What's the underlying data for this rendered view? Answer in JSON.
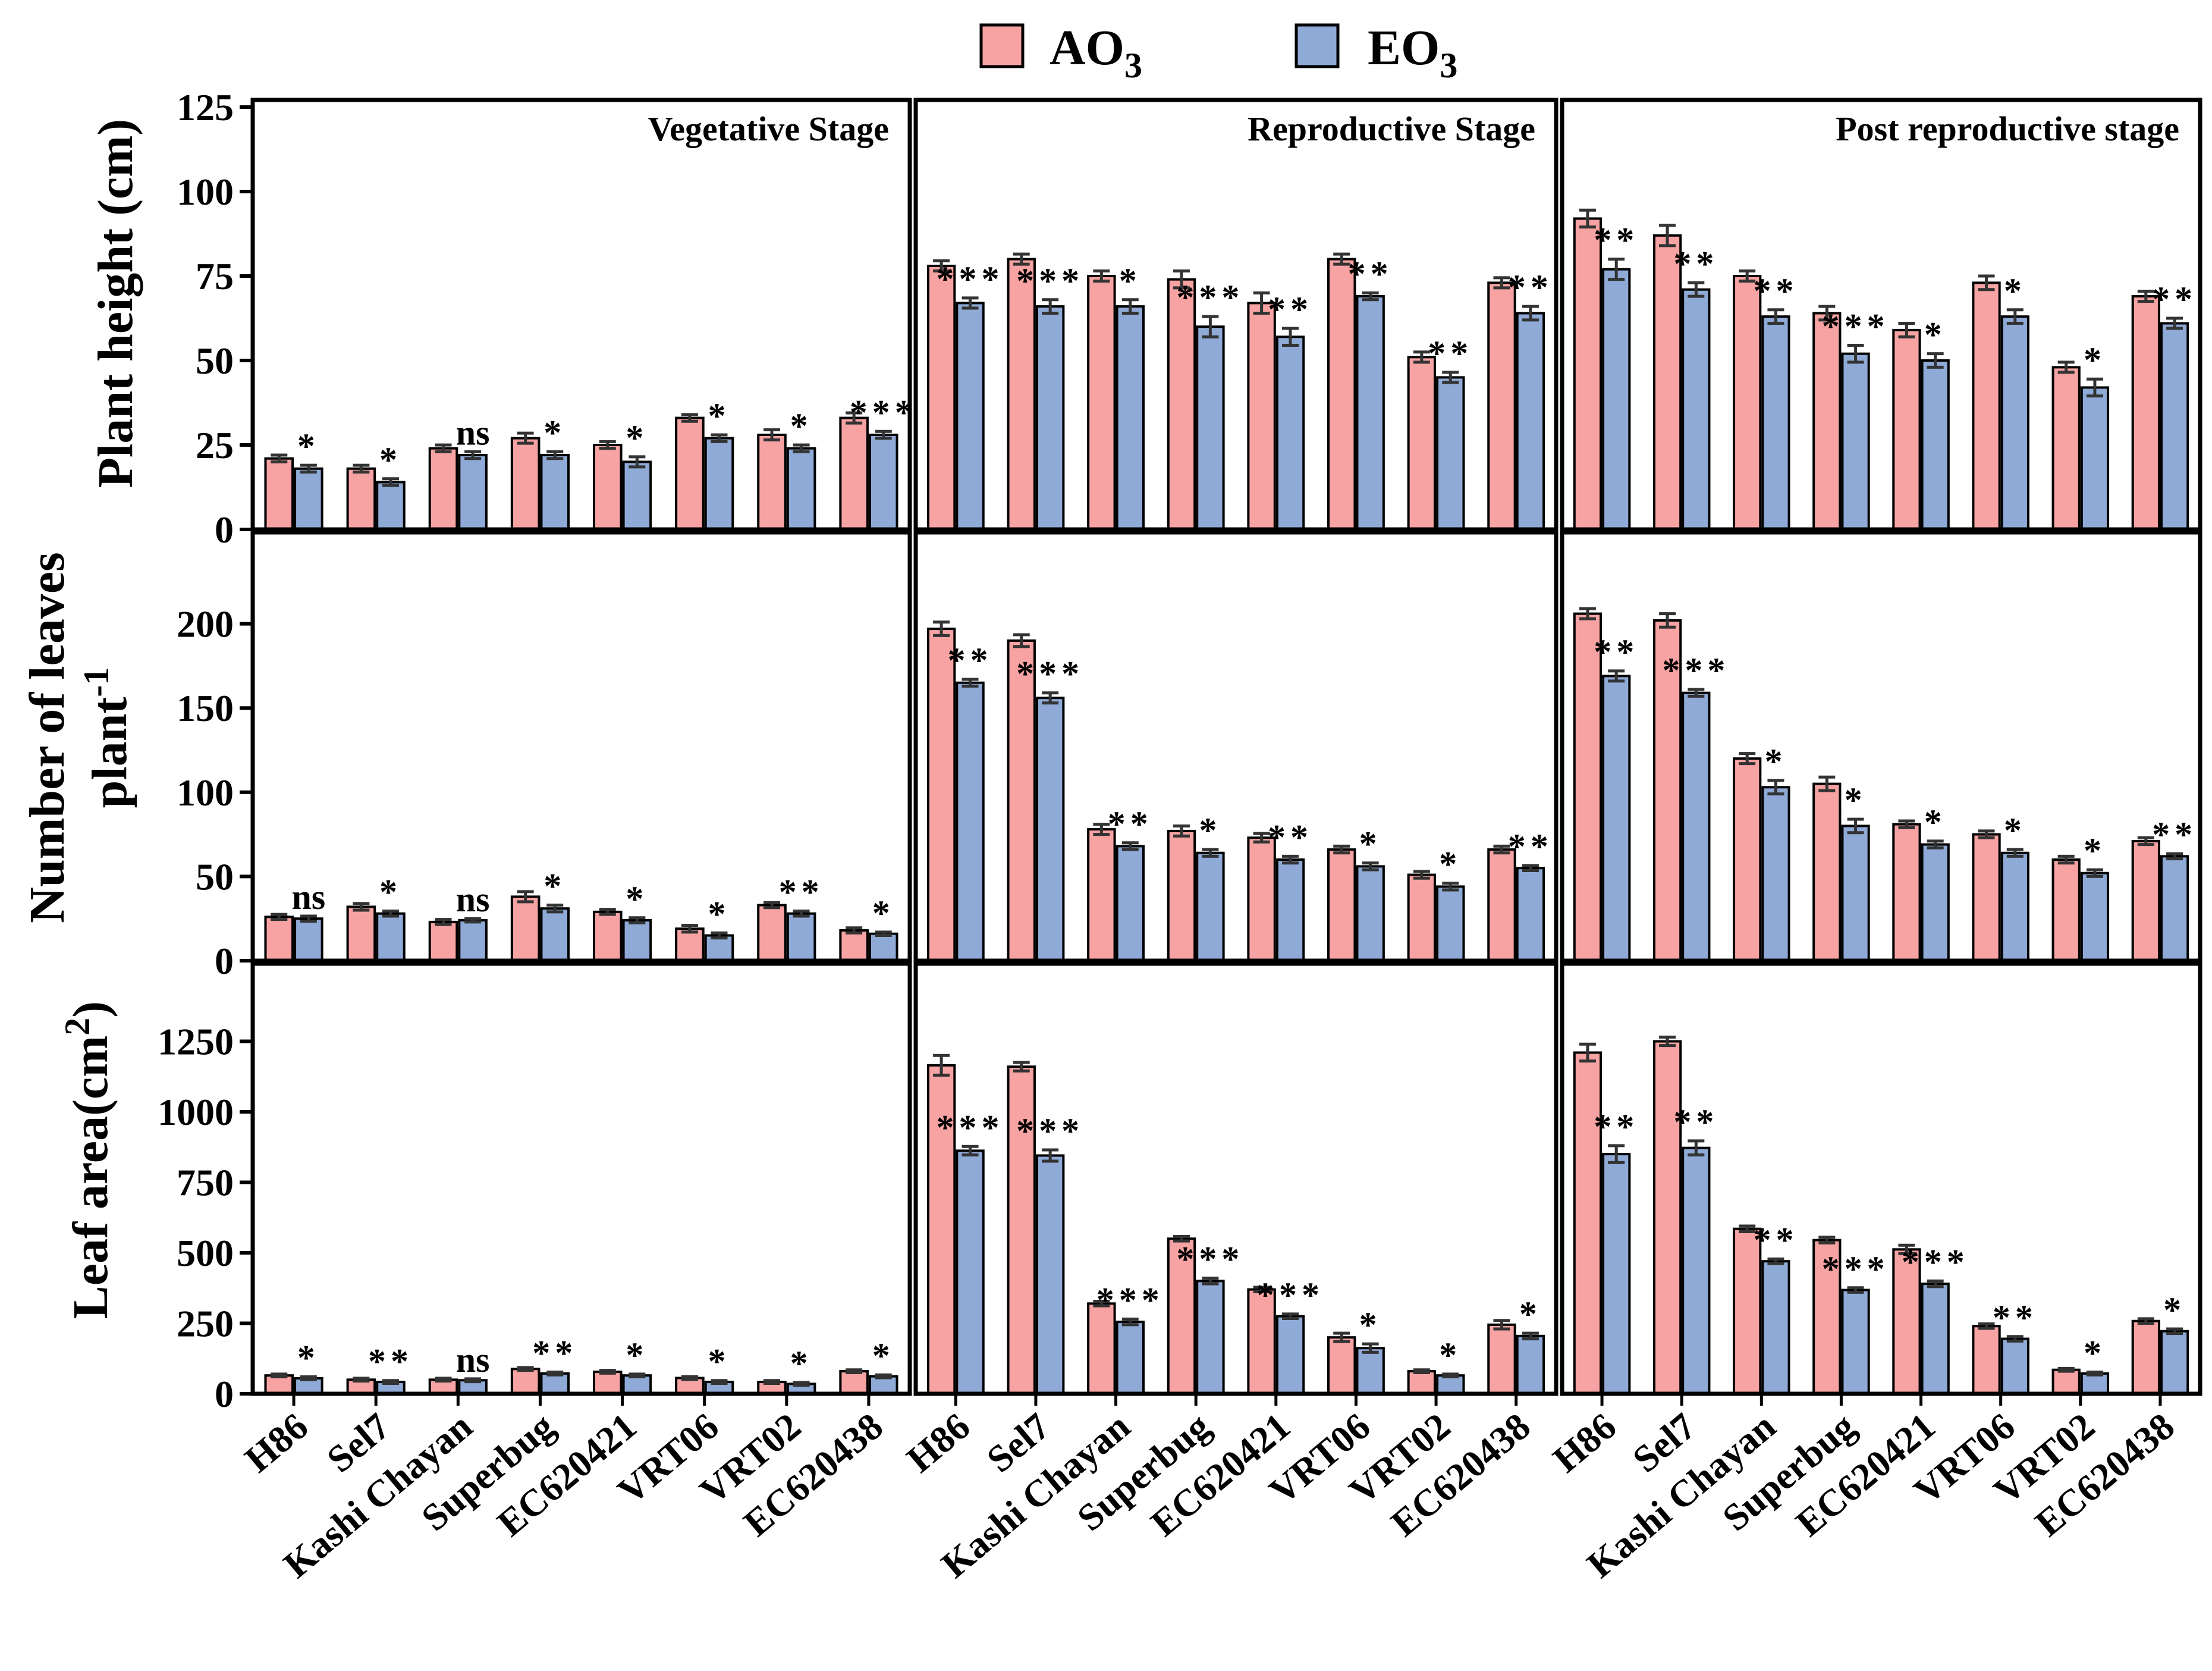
{
  "colors": {
    "ao3": "#F7A3A3",
    "eo3": "#8FAAD6",
    "axis": "#000000"
  },
  "legend": {
    "ao3": {
      "text": "AO",
      "sub": "3"
    },
    "eo3": {
      "text": "EO",
      "sub": "3"
    }
  },
  "categories": [
    "H86",
    "Sel7",
    "Kashi Chayan",
    "Superbug",
    "EC620421",
    "VRT06",
    "VRT02",
    "EC620438"
  ],
  "stages": [
    "Vegetative Stage",
    "Reproductive Stage",
    "Post reproductive stage"
  ],
  "ylabels": {
    "height": "Plant height (cm)",
    "leaves_line1": "Number of leaves",
    "leaves_line2_main": "plant",
    "leaves_line2_sup": "-1",
    "area_main": "Leaf area(cm",
    "area_sup": "2",
    "area_close": ")"
  },
  "chart_data": [
    {
      "type": "bar",
      "metric": "Plant height (cm)",
      "stage": "Vegetative Stage",
      "ylim": [
        0,
        125
      ],
      "yticks": [
        0,
        25,
        50,
        75,
        100,
        125
      ],
      "series": [
        {
          "name": "AO3",
          "values": [
            21,
            18,
            24,
            27,
            25,
            33,
            28,
            33
          ],
          "errors": [
            1,
            1,
            1,
            1.5,
            1,
            1,
            1.5,
            1.5
          ]
        },
        {
          "name": "EO3",
          "values": [
            18,
            14,
            22,
            22,
            20,
            27,
            24,
            28
          ],
          "errors": [
            1,
            1,
            1,
            1,
            1.5,
            1,
            1,
            1
          ]
        }
      ],
      "significance": [
        "*",
        "*",
        "ns",
        "*",
        "*",
        "*",
        "*",
        "***"
      ]
    },
    {
      "type": "bar",
      "metric": "Plant height (cm)",
      "stage": "Reproductive Stage",
      "ylim": [
        0,
        125
      ],
      "yticks": [
        0,
        25,
        50,
        75,
        100,
        125
      ],
      "series": [
        {
          "name": "AO3",
          "values": [
            78,
            80,
            75,
            74,
            67,
            80,
            51,
            73
          ],
          "errors": [
            1.5,
            1.5,
            1.5,
            2.5,
            3,
            1.5,
            1.5,
            1.5
          ]
        },
        {
          "name": "EO3",
          "values": [
            67,
            66,
            66,
            60,
            57,
            69,
            45,
            64
          ],
          "errors": [
            1.5,
            2,
            2,
            3,
            2.5,
            1,
            1.5,
            2
          ]
        }
      ],
      "significance": [
        "***",
        "***",
        "*",
        "***",
        "**",
        "**",
        "**",
        "**"
      ]
    },
    {
      "type": "bar",
      "metric": "Plant height (cm)",
      "stage": "Post reproductive stage",
      "ylim": [
        0,
        125
      ],
      "yticks": [
        0,
        25,
        50,
        75,
        100,
        125
      ],
      "series": [
        {
          "name": "AO3",
          "values": [
            92,
            87,
            75,
            64,
            59,
            73,
            48,
            69
          ],
          "errors": [
            2.5,
            3,
            1.5,
            2,
            2,
            2,
            1.5,
            1.5
          ]
        },
        {
          "name": "EO3",
          "values": [
            77,
            71,
            63,
            52,
            50,
            63,
            42,
            61
          ],
          "errors": [
            3,
            2,
            2,
            2.5,
            2,
            2,
            2.5,
            1.5
          ]
        }
      ],
      "significance": [
        "**",
        "**",
        "**",
        "***",
        "*",
        "*",
        "*",
        "**"
      ]
    },
    {
      "type": "bar",
      "metric": "Number of leaves plant-1",
      "stage": "Vegetative Stage",
      "ylim": [
        0,
        250
      ],
      "yticks": [
        0,
        50,
        100,
        150,
        200
      ],
      "series": [
        {
          "name": "AO3",
          "values": [
            26,
            32,
            23,
            38,
            29,
            19,
            33,
            18
          ],
          "errors": [
            1.5,
            2,
            1.5,
            3,
            1.5,
            2,
            1.5,
            1.5
          ]
        },
        {
          "name": "EO3",
          "values": [
            25,
            28,
            24,
            31,
            24,
            15,
            28,
            16
          ],
          "errors": [
            1.5,
            1.5,
            1,
            2,
            1.5,
            1.5,
            1.5,
            1
          ]
        }
      ],
      "significance": [
        "ns",
        "*",
        "ns",
        "*",
        "*",
        "*",
        "**",
        "*"
      ]
    },
    {
      "type": "bar",
      "metric": "Number of leaves plant-1",
      "stage": "Reproductive Stage",
      "ylim": [
        0,
        250
      ],
      "yticks": [
        0,
        50,
        100,
        150,
        200
      ],
      "series": [
        {
          "name": "AO3",
          "values": [
            197,
            190,
            78,
            77,
            73,
            66,
            51,
            66
          ],
          "errors": [
            4,
            3.5,
            3,
            3,
            2.5,
            2,
            2,
            2
          ]
        },
        {
          "name": "EO3",
          "values": [
            165,
            156,
            68,
            64,
            60,
            56,
            44,
            55
          ],
          "errors": [
            2,
            3,
            2,
            2,
            2,
            2,
            2,
            1.5
          ]
        }
      ],
      "significance": [
        "**",
        "***",
        "**",
        "*",
        "**",
        "*",
        "*",
        "**"
      ]
    },
    {
      "type": "bar",
      "metric": "Number of leaves plant-1",
      "stage": "Post reproductive stage",
      "ylim": [
        0,
        250
      ],
      "yticks": [
        0,
        50,
        100,
        150,
        200
      ],
      "series": [
        {
          "name": "AO3",
          "values": [
            206,
            202,
            120,
            105,
            81,
            75,
            60,
            71
          ],
          "errors": [
            3,
            4,
            3,
            4,
            2,
            2,
            2,
            2
          ]
        },
        {
          "name": "EO3",
          "values": [
            169,
            159,
            103,
            80,
            69,
            64,
            52,
            62
          ],
          "errors": [
            3,
            2,
            4,
            4,
            2,
            2,
            2,
            1.5
          ]
        }
      ],
      "significance": [
        "**",
        "***",
        "*",
        "*",
        "*",
        "*",
        "*",
        "**"
      ]
    },
    {
      "type": "bar",
      "metric": "Leaf area (cm2)",
      "stage": "Vegetative Stage",
      "ylim": [
        0,
        1500
      ],
      "yticks": [
        0,
        250,
        500,
        750,
        1000,
        1250
      ],
      "series": [
        {
          "name": "AO3",
          "values": [
            65,
            50,
            50,
            88,
            78,
            56,
            42,
            80
          ],
          "errors": [
            5,
            5,
            5,
            5,
            5,
            5,
            5,
            5
          ]
        },
        {
          "name": "EO3",
          "values": [
            55,
            42,
            48,
            72,
            65,
            42,
            35,
            62
          ],
          "errors": [
            5,
            5,
            5,
            5,
            5,
            5,
            5,
            5
          ]
        }
      ],
      "significance": [
        "*",
        "**",
        "ns",
        "**",
        "*",
        "*",
        "*",
        "*"
      ]
    },
    {
      "type": "bar",
      "metric": "Leaf area (cm2)",
      "stage": "Reproductive Stage",
      "ylim": [
        0,
        1500
      ],
      "yticks": [
        0,
        250,
        500,
        750,
        1000,
        1250
      ],
      "series": [
        {
          "name": "AO3",
          "values": [
            1165,
            1160,
            320,
            550,
            370,
            200,
            80,
            245
          ],
          "errors": [
            35,
            15,
            8,
            8,
            8,
            15,
            5,
            15
          ]
        },
        {
          "name": "EO3",
          "values": [
            862,
            845,
            255,
            400,
            275,
            162,
            65,
            205
          ],
          "errors": [
            15,
            20,
            10,
            10,
            8,
            15,
            5,
            10
          ]
        }
      ],
      "significance": [
        "***",
        "***",
        "***",
        "***",
        "***",
        "*",
        "*",
        "*"
      ]
    },
    {
      "type": "bar",
      "metric": "Leaf area (cm2)",
      "stage": "Post reproductive stage",
      "ylim": [
        0,
        1500
      ],
      "yticks": [
        0,
        250,
        500,
        750,
        1000,
        1250
      ],
      "series": [
        {
          "name": "AO3",
          "values": [
            1210,
            1250,
            585,
            545,
            512,
            240,
            85,
            258
          ],
          "errors": [
            30,
            15,
            10,
            10,
            15,
            8,
            5,
            8
          ]
        },
        {
          "name": "EO3",
          "values": [
            850,
            872,
            470,
            368,
            390,
            195,
            72,
            222
          ],
          "errors": [
            30,
            25,
            8,
            8,
            10,
            8,
            5,
            8
          ]
        }
      ],
      "significance": [
        "**",
        "**",
        "**",
        "***",
        "***",
        "**",
        "*",
        "*"
      ]
    }
  ]
}
